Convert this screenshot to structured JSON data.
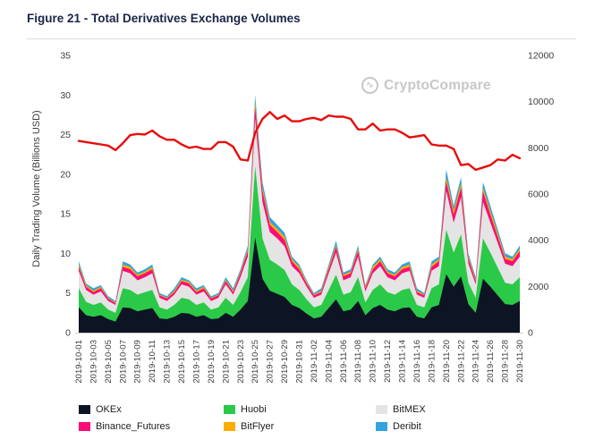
{
  "figure_title": "Figure 21 - Total Derivatives Exchange Volumes",
  "watermark_text": "CryptoCompare",
  "watermark_icon": "∿",
  "chart_data": {
    "type": "area",
    "stacked": true,
    "title": "Figure 21 - Total Derivatives Exchange Volumes",
    "ylabel": "Daily Trading Volume (Billions USD)",
    "grid": false,
    "legend_position": "bottom",
    "left_axis": {
      "min": 0,
      "max": 35,
      "ticks": [
        0,
        5,
        10,
        15,
        20,
        25,
        30,
        35
      ]
    },
    "right_axis": {
      "min": 0,
      "max": 12000,
      "ticks": [
        0,
        2000,
        4000,
        6000,
        8000,
        10000,
        12000
      ]
    },
    "x_label_every": 2,
    "x_dates": [
      "2019-10-01",
      "2019-10-02",
      "2019-10-03",
      "2019-10-04",
      "2019-10-05",
      "2019-10-06",
      "2019-10-07",
      "2019-10-08",
      "2019-10-09",
      "2019-10-10",
      "2019-10-11",
      "2019-10-12",
      "2019-10-13",
      "2019-10-14",
      "2019-10-15",
      "2019-10-16",
      "2019-10-17",
      "2019-10-18",
      "2019-10-19",
      "2019-10-20",
      "2019-10-21",
      "2019-10-22",
      "2019-10-23",
      "2019-10-24",
      "2019-10-25",
      "2019-10-26",
      "2019-10-27",
      "2019-10-28",
      "2019-10-29",
      "2019-10-30",
      "2019-10-31",
      "2019-11-01",
      "2019-11-02",
      "2019-11-03",
      "2019-11-04",
      "2019-11-05",
      "2019-11-06",
      "2019-11-07",
      "2019-11-08",
      "2019-11-09",
      "2019-11-10",
      "2019-11-11",
      "2019-11-12",
      "2019-11-13",
      "2019-11-14",
      "2019-11-15",
      "2019-11-16",
      "2019-11-17",
      "2019-11-18",
      "2019-11-19",
      "2019-11-20",
      "2019-11-21",
      "2019-11-22",
      "2019-11-23",
      "2019-11-24",
      "2019-11-25",
      "2019-11-26",
      "2019-11-27",
      "2019-11-28",
      "2019-11-29",
      "2019-11-30"
    ],
    "series": [
      {
        "name": "OKEx",
        "color": "#0d1424",
        "type": "area",
        "axis": "left",
        "values": [
          3.2,
          2.2,
          2.0,
          2.2,
          1.7,
          1.4,
          3.2,
          3.1,
          2.7,
          2.9,
          3.1,
          1.8,
          1.7,
          2.0,
          2.5,
          2.4,
          2.0,
          2.2,
          1.7,
          1.8,
          2.5,
          2.0,
          2.9,
          4.0,
          12.0,
          6.8,
          5.3,
          4.9,
          4.5,
          3.5,
          3.1,
          2.4,
          1.8,
          2.0,
          3.1,
          4.2,
          2.7,
          2.9,
          4.0,
          2.2,
          3.1,
          3.5,
          2.9,
          2.7,
          3.1,
          3.2,
          2.0,
          1.8,
          3.2,
          3.5,
          7.4,
          5.8,
          7.1,
          3.6,
          2.5,
          6.8,
          5.8,
          4.7,
          3.6,
          3.5,
          4.0
        ]
      },
      {
        "name": "Huobi",
        "color": "#2bc948",
        "type": "area",
        "axis": "left",
        "values": [
          2.4,
          1.7,
          1.5,
          1.6,
          1.2,
          1.1,
          2.4,
          2.3,
          2.1,
          2.2,
          2.3,
          1.4,
          1.2,
          1.5,
          1.9,
          1.8,
          1.5,
          1.6,
          1.2,
          1.4,
          1.9,
          1.5,
          2.2,
          3.0,
          9.0,
          5.1,
          3.9,
          3.7,
          3.4,
          2.6,
          2.3,
          1.8,
          1.4,
          1.5,
          2.3,
          3.1,
          2.1,
          2.2,
          3.0,
          1.6,
          2.3,
          2.6,
          2.2,
          2.1,
          2.3,
          2.4,
          1.5,
          1.4,
          2.4,
          2.6,
          5.6,
          4.3,
          5.3,
          2.7,
          1.9,
          5.1,
          4.3,
          3.5,
          2.7,
          2.6,
          3.0
        ]
      },
      {
        "name": "BitMEX",
        "color": "#e4e4e4",
        "type": "area",
        "axis": "left",
        "values": [
          2.2,
          1.5,
          1.3,
          1.4,
          1.1,
          1.0,
          2.2,
          2.1,
          1.8,
          1.9,
          2.1,
          1.2,
          1.1,
          1.3,
          1.7,
          1.6,
          1.3,
          1.4,
          1.1,
          1.2,
          1.7,
          1.3,
          1.9,
          2.6,
          6.0,
          4.6,
          3.5,
          3.3,
          3.0,
          2.3,
          2.1,
          1.6,
          1.2,
          1.3,
          2.1,
          2.8,
          1.8,
          1.9,
          2.6,
          1.4,
          2.1,
          2.3,
          1.9,
          1.8,
          2.1,
          2.2,
          1.3,
          1.2,
          2.2,
          2.3,
          4.9,
          3.8,
          4.7,
          2.4,
          1.7,
          4.6,
          3.8,
          3.1,
          2.4,
          2.3,
          2.6
        ]
      },
      {
        "name": "Binance_Futures",
        "color": "#fa0d78",
        "type": "area",
        "axis": "left",
        "values": [
          0.5,
          0.4,
          0.3,
          0.4,
          0.3,
          0.2,
          0.5,
          0.5,
          0.5,
          0.5,
          0.5,
          0.3,
          0.3,
          0.3,
          0.4,
          0.4,
          0.3,
          0.4,
          0.3,
          0.3,
          0.4,
          0.3,
          0.5,
          0.7,
          1.5,
          1.3,
          0.9,
          0.8,
          0.8,
          0.6,
          0.5,
          0.4,
          0.3,
          0.3,
          0.5,
          0.7,
          0.5,
          0.5,
          0.7,
          0.4,
          0.5,
          0.6,
          0.5,
          0.5,
          0.5,
          0.5,
          0.3,
          0.3,
          0.5,
          0.6,
          1.2,
          1.0,
          1.2,
          0.6,
          0.4,
          1.3,
          1.0,
          0.8,
          0.6,
          0.6,
          0.7
        ]
      },
      {
        "name": "BitFlyer",
        "color": "#ffac00",
        "type": "area",
        "axis": "left",
        "values": [
          0.3,
          0.2,
          0.2,
          0.2,
          0.1,
          0.1,
          0.3,
          0.3,
          0.2,
          0.2,
          0.3,
          0.1,
          0.1,
          0.2,
          0.2,
          0.2,
          0.2,
          0.2,
          0.1,
          0.1,
          0.2,
          0.2,
          0.2,
          0.3,
          0.7,
          0.5,
          0.4,
          0.4,
          0.4,
          0.3,
          0.3,
          0.2,
          0.1,
          0.2,
          0.3,
          0.3,
          0.2,
          0.2,
          0.3,
          0.2,
          0.3,
          0.3,
          0.2,
          0.2,
          0.3,
          0.3,
          0.2,
          0.1,
          0.3,
          0.3,
          0.6,
          0.5,
          0.6,
          0.3,
          0.2,
          0.5,
          0.5,
          0.4,
          0.3,
          0.3,
          0.3
        ]
      },
      {
        "name": "Deribit",
        "color": "#2fa4e0",
        "type": "area",
        "axis": "left",
        "values": [
          0.4,
          0.2,
          0.3,
          0.2,
          0.2,
          0.2,
          0.4,
          0.3,
          0.3,
          0.3,
          0.3,
          0.2,
          0.2,
          0.3,
          0.3,
          0.2,
          0.3,
          0.2,
          0.2,
          0.2,
          0.3,
          0.3,
          0.3,
          0.4,
          0.8,
          0.7,
          0.6,
          0.5,
          0.5,
          0.3,
          0.3,
          0.2,
          0.2,
          0.3,
          0.3,
          0.5,
          0.3,
          0.3,
          0.4,
          0.2,
          0.3,
          0.3,
          0.3,
          0.3,
          0.3,
          0.4,
          0.3,
          0.2,
          0.4,
          0.3,
          0.9,
          0.6,
          0.7,
          0.4,
          0.3,
          0.7,
          0.6,
          0.5,
          0.4,
          0.3,
          0.4
        ]
      }
    ],
    "line_series": {
      "name": "price_line",
      "color": "#e80c0c",
      "type": "line",
      "axis": "right",
      "values": [
        8300,
        8250,
        8200,
        8150,
        8100,
        7900,
        8200,
        8550,
        8600,
        8580,
        8750,
        8500,
        8350,
        8350,
        8150,
        8000,
        8050,
        7950,
        7950,
        8250,
        8250,
        8050,
        7500,
        7450,
        8650,
        9250,
        9550,
        9250,
        9400,
        9150,
        9150,
        9250,
        9300,
        9200,
        9400,
        9350,
        9350,
        9250,
        8800,
        8800,
        9050,
        8750,
        8800,
        8800,
        8650,
        8450,
        8500,
        8550,
        8150,
        8100,
        8100,
        7950,
        7250,
        7300,
        7050,
        7150,
        7250,
        7500,
        7450,
        7700,
        7550
      ]
    }
  }
}
